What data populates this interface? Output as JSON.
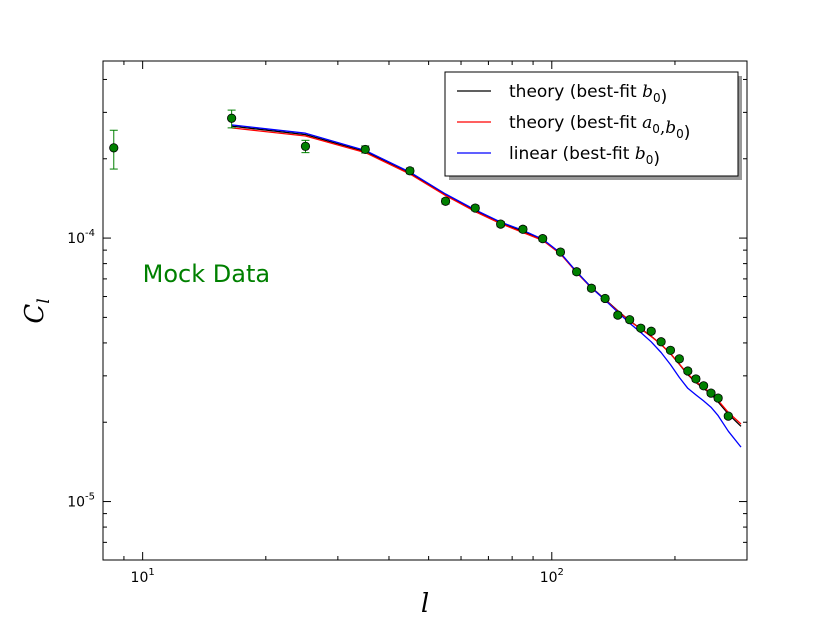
{
  "chart_data": {
    "type": "line",
    "x_scale": "log",
    "y_scale": "log",
    "xlim": [
      8.0,
      300.0
    ],
    "ylim": [
      6e-06,
      0.00047
    ],
    "xlabel": "l",
    "ylabel": "C",
    "ylabel_sub": "l",
    "x_ticks": [
      {
        "value": 10,
        "base": "10",
        "exp": "1"
      },
      {
        "value": 100,
        "base": "10",
        "exp": "2"
      }
    ],
    "y_ticks": [
      {
        "value": 1e-05,
        "base": "10",
        "exp": "-5"
      },
      {
        "value": 0.0001,
        "base": "10",
        "exp": "-4"
      }
    ],
    "grid": false,
    "legend_position": "top-right",
    "annotations": [
      {
        "text": "Mock Data",
        "color": "#008000",
        "x": 10,
        "y": 7.3e-05
      }
    ],
    "series": [
      {
        "name": "theory (best-fit b0)",
        "legend": {
          "prefix": "theory (best-fit ",
          "math": [
            {
              "t": "b",
              "s": "0"
            }
          ],
          "suffix": ")"
        },
        "kind": "line",
        "color": "#000000",
        "x": [
          16.5,
          25,
          35,
          45,
          55,
          65,
          75,
          85,
          95,
          105,
          115,
          125,
          135,
          145,
          155,
          165,
          175,
          185,
          195,
          205,
          215,
          225,
          235,
          245,
          255,
          270,
          290
        ],
        "y": [
          0.000266,
          0.000247,
          0.000213,
          0.000176,
          0.000146,
          0.000127,
          0.000114,
          0.000106,
          9.85e-05,
          8.75e-05,
          7.45e-05,
          6.5e-05,
          5.85e-05,
          5.3e-05,
          4.85e-05,
          4.53e-05,
          4.24e-05,
          3.95e-05,
          3.64e-05,
          3.32e-05,
          3.03e-05,
          2.83e-05,
          2.69e-05,
          2.56e-05,
          2.39e-05,
          2.15e-05,
          1.93e-05
        ]
      },
      {
        "name": "theory (best-fit a0,b0)",
        "legend": {
          "prefix": "theory (best-fit ",
          "math": [
            {
              "t": "a",
              "s": "0"
            },
            {
              "t": ",",
              "s": ""
            },
            {
              "t": "b",
              "s": "0"
            }
          ],
          "suffix": ")"
        },
        "kind": "line",
        "color": "#ff0000",
        "x": [
          16.5,
          25,
          35,
          45,
          55,
          65,
          75,
          85,
          95,
          105,
          115,
          125,
          135,
          145,
          155,
          165,
          175,
          185,
          195,
          205,
          215,
          225,
          235,
          245,
          255,
          270,
          290
        ],
        "y": [
          0.000262,
          0.000244,
          0.000211,
          0.000175,
          0.000145,
          0.000126,
          0.0001135,
          0.000105,
          9.8e-05,
          8.7e-05,
          7.4e-05,
          6.47e-05,
          5.83e-05,
          5.28e-05,
          4.84e-05,
          4.52e-05,
          4.23e-05,
          3.95e-05,
          3.64e-05,
          3.33e-05,
          3.05e-05,
          2.85e-05,
          2.71e-05,
          2.58e-05,
          2.42e-05,
          2.18e-05,
          1.97e-05
        ]
      },
      {
        "name": "linear (best-fit b0)",
        "legend": {
          "prefix": "linear (best-fit ",
          "math": [
            {
              "t": "b",
              "s": "0"
            }
          ],
          "suffix": ")"
        },
        "kind": "line",
        "color": "#0000ff",
        "x": [
          16.5,
          25,
          35,
          45,
          55,
          65,
          75,
          85,
          95,
          105,
          115,
          125,
          135,
          145,
          155,
          165,
          175,
          185,
          195,
          205,
          215,
          225,
          235,
          245,
          255,
          270,
          290
        ],
        "y": [
          0.000269,
          0.00025,
          0.000215,
          0.000178,
          0.000147,
          0.000128,
          0.000115,
          0.000107,
          9.9e-05,
          8.78e-05,
          7.45e-05,
          6.48e-05,
          5.81e-05,
          5.23e-05,
          4.75e-05,
          4.38e-05,
          4.04e-05,
          3.68e-05,
          3.31e-05,
          2.96e-05,
          2.69e-05,
          2.54e-05,
          2.41e-05,
          2.28e-05,
          2.12e-05,
          1.85e-05,
          1.61e-05
        ]
      },
      {
        "name": "Mock Data",
        "kind": "points",
        "color": "#008000",
        "x": [
          8.5,
          16.5,
          25,
          35,
          45,
          55,
          65,
          75,
          85,
          95,
          105,
          115,
          125,
          135,
          145,
          155,
          165,
          175,
          185,
          195,
          205,
          215,
          225,
          235,
          245,
          255,
          270
        ],
        "y": [
          0.00022,
          0.000285,
          0.000223,
          0.000217,
          0.00018,
          0.000138,
          0.00013,
          0.000113,
          0.000108,
          9.95e-05,
          8.85e-05,
          7.45e-05,
          6.45e-05,
          5.9e-05,
          5.1e-05,
          4.9e-05,
          4.55e-05,
          4.43e-05,
          4.04e-05,
          3.75e-05,
          3.48e-05,
          3.13e-05,
          2.92e-05,
          2.75e-05,
          2.58e-05,
          2.47e-05,
          2.11e-05
        ],
        "yerr_low": [
          3.72e-05,
          2.3e-05,
          1.2e-05,
          6.7e-06,
          4.5e-06,
          3.4e-06,
          3e-06,
          2.6e-06,
          2.4e-06,
          2.1e-06,
          1.8e-06,
          1.6e-06,
          1.4e-06,
          1.2e-06,
          1.1e-06,
          1e-06,
          9e-07,
          9e-07,
          8e-07,
          7e-07,
          7e-07,
          6e-07,
          6e-07,
          5e-07,
          5e-07,
          5e-07,
          4e-07
        ],
        "yerr_high": [
          3.66e-05,
          2.1e-05,
          1.2e-05,
          6.7e-06,
          4.5e-06,
          3.4e-06,
          3e-06,
          2.6e-06,
          2.4e-06,
          2.1e-06,
          1.8e-06,
          1.6e-06,
          1.4e-06,
          1.2e-06,
          1.1e-06,
          1e-06,
          9e-07,
          9e-07,
          8e-07,
          7e-07,
          7e-07,
          6e-07,
          6e-07,
          5e-07,
          5e-07,
          5e-07,
          4e-07
        ]
      }
    ]
  }
}
